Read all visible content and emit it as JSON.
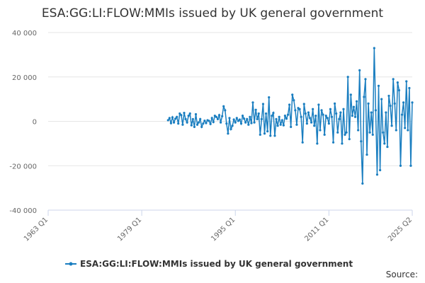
{
  "chart_data": {
    "type": "line",
    "title": "ESA:GG:LI:FLOW:MMIs issued by UK general government",
    "source": "Source:",
    "xlim": [
      "1963 Q1",
      "2025 Q2"
    ],
    "xticks": [
      "1963 Q1",
      "1979 Q1",
      "1995 Q1",
      "2011 Q1",
      "2025 Q2"
    ],
    "ylim": [
      -40000,
      40000
    ],
    "yticks": [
      {
        "value": -40000,
        "label": "-40 000"
      },
      {
        "value": -20000,
        "label": "-20 000"
      },
      0,
      {
        "value": 20000,
        "label": "20 000"
      },
      {
        "value": 40000,
        "label": "40 000"
      }
    ],
    "grid": true,
    "x": [
      "1983 Q3",
      "1983 Q4",
      "1984 Q1",
      "1984 Q2",
      "1984 Q3",
      "1984 Q4",
      "1985 Q1",
      "1985 Q2",
      "1985 Q3",
      "1985 Q4",
      "1986 Q1",
      "1986 Q2",
      "1986 Q3",
      "1986 Q4",
      "1987 Q1",
      "1987 Q2",
      "1987 Q3",
      "1987 Q4",
      "1988 Q1",
      "1988 Q2",
      "1988 Q3",
      "1988 Q4",
      "1989 Q1",
      "1989 Q2",
      "1989 Q3",
      "1989 Q4",
      "1990 Q1",
      "1990 Q2",
      "1990 Q3",
      "1990 Q4",
      "1991 Q1",
      "1991 Q2",
      "1991 Q3",
      "1991 Q4",
      "1992 Q1",
      "1992 Q2",
      "1992 Q3",
      "1992 Q4",
      "1993 Q1",
      "1993 Q2",
      "1993 Q3",
      "1993 Q4",
      "1994 Q1",
      "1994 Q2",
      "1994 Q3",
      "1994 Q4",
      "1995 Q1",
      "1995 Q2",
      "1995 Q3",
      "1995 Q4",
      "1996 Q1",
      "1996 Q2",
      "1996 Q3",
      "1996 Q4",
      "1997 Q1",
      "1997 Q2",
      "1997 Q3",
      "1997 Q4",
      "1998 Q1",
      "1998 Q2",
      "1998 Q3",
      "1998 Q4",
      "1999 Q1",
      "1999 Q2",
      "1999 Q3",
      "1999 Q4",
      "2000 Q1",
      "2000 Q2",
      "2000 Q3",
      "2000 Q4",
      "2001 Q1",
      "2001 Q2",
      "2001 Q3",
      "2001 Q4",
      "2002 Q1",
      "2002 Q2",
      "2002 Q3",
      "2002 Q4",
      "2003 Q1",
      "2003 Q2",
      "2003 Q3",
      "2003 Q4",
      "2004 Q1",
      "2004 Q2",
      "2004 Q3",
      "2004 Q4",
      "2005 Q1",
      "2005 Q2",
      "2005 Q3",
      "2005 Q4",
      "2006 Q1",
      "2006 Q2",
      "2006 Q3",
      "2006 Q4",
      "2007 Q1",
      "2007 Q2",
      "2007 Q3",
      "2007 Q4",
      "2008 Q1",
      "2008 Q2",
      "2008 Q3",
      "2008 Q4",
      "2009 Q1",
      "2009 Q2",
      "2009 Q3",
      "2009 Q4",
      "2010 Q1",
      "2010 Q2",
      "2010 Q3",
      "2010 Q4",
      "2011 Q1",
      "2011 Q2",
      "2011 Q3",
      "2011 Q4",
      "2012 Q1",
      "2012 Q2",
      "2012 Q3",
      "2012 Q4",
      "2013 Q1",
      "2013 Q2",
      "2013 Q3",
      "2013 Q4",
      "2014 Q1",
      "2014 Q2",
      "2014 Q3",
      "2014 Q4",
      "2015 Q1",
      "2015 Q2",
      "2015 Q3",
      "2015 Q4",
      "2016 Q1",
      "2016 Q2",
      "2016 Q3",
      "2016 Q4",
      "2017 Q1",
      "2017 Q2",
      "2017 Q3",
      "2017 Q4",
      "2018 Q1",
      "2018 Q2",
      "2018 Q3",
      "2018 Q4",
      "2019 Q1",
      "2019 Q2",
      "2019 Q3",
      "2019 Q4",
      "2020 Q1",
      "2020 Q2",
      "2020 Q3",
      "2020 Q4",
      "2021 Q1",
      "2021 Q2",
      "2021 Q3",
      "2021 Q4",
      "2022 Q1",
      "2022 Q2",
      "2022 Q3",
      "2022 Q4",
      "2023 Q1",
      "2023 Q2",
      "2023 Q3",
      "2023 Q4",
      "2024 Q1",
      "2024 Q2",
      "2024 Q3",
      "2024 Q4",
      "2025 Q1",
      "2025 Q2"
    ],
    "series": [
      {
        "name": "ESA:GG:LI:FLOW:MMIs issued by UK general government",
        "color": "#1a7ec0",
        "values": [
          500,
          1500,
          -800,
          1800,
          -500,
          1200,
          2000,
          -1000,
          3500,
          2800,
          -1500,
          3800,
          1000,
          -500,
          2500,
          3500,
          -1800,
          1000,
          -2500,
          3200,
          -1500,
          -500,
          1000,
          -2500,
          -1000,
          300,
          -800,
          500,
          200,
          -1200,
          1500,
          -300,
          2500,
          2000,
          1000,
          2800,
          -500,
          2300,
          6800,
          5000,
          -1000,
          -5500,
          1500,
          -3500,
          -2000,
          800,
          -500,
          1500,
          200,
          800,
          -1000,
          2500,
          1200,
          -500,
          1000,
          -1500,
          2000,
          -800,
          8500,
          -500,
          5200,
          1000,
          3500,
          -6000,
          1000,
          7800,
          -5500,
          3500,
          -4500,
          10800,
          -6500,
          2500,
          3800,
          -6500,
          1000,
          -2000,
          2000,
          -1500,
          500,
          -1800,
          2500,
          1200,
          3000,
          7500,
          -2500,
          12000,
          9500,
          5000,
          -1500,
          6000,
          5500,
          2000,
          -9500,
          7800,
          3500,
          -1000,
          4000,
          1500,
          -500,
          5500,
          -2000,
          2500,
          -10000,
          7500,
          -4000,
          5000,
          3000,
          -6000,
          2500,
          1500,
          -1000,
          5500,
          2000,
          -9500,
          8000,
          3500,
          -5000,
          1000,
          4000,
          -10000,
          5500,
          -6000,
          -5000,
          20000,
          -8000,
          12000,
          2500,
          6500,
          2000,
          9000,
          -4000,
          23000,
          -9000,
          -28000,
          11000,
          19000,
          -15000,
          8000,
          -5000,
          4000,
          -6000,
          33000,
          5000,
          -24000,
          16000,
          -22000,
          10000,
          -5000,
          -10000,
          4000,
          -11500,
          11500,
          7000,
          -2000,
          19000,
          8000,
          -4000,
          17500,
          14000,
          -20000,
          3000,
          8500,
          -3000,
          18000,
          -4000,
          15000,
          -20000,
          8500
        ]
      }
    ]
  }
}
